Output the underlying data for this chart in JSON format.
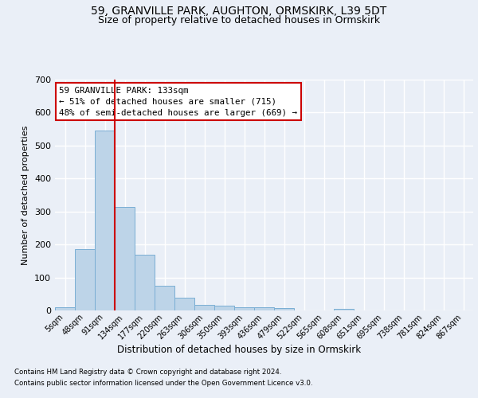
{
  "title1": "59, GRANVILLE PARK, AUGHTON, ORMSKIRK, L39 5DT",
  "title2": "Size of property relative to detached houses in Ormskirk",
  "xlabel": "Distribution of detached houses by size in Ormskirk",
  "ylabel": "Number of detached properties",
  "footer1": "Contains HM Land Registry data © Crown copyright and database right 2024.",
  "footer2": "Contains public sector information licensed under the Open Government Licence v3.0.",
  "bar_labels": [
    "5sqm",
    "48sqm",
    "91sqm",
    "134sqm",
    "177sqm",
    "220sqm",
    "263sqm",
    "306sqm",
    "350sqm",
    "393sqm",
    "436sqm",
    "479sqm",
    "522sqm",
    "565sqm",
    "608sqm",
    "651sqm",
    "695sqm",
    "738sqm",
    "781sqm",
    "824sqm",
    "867sqm"
  ],
  "bar_values": [
    10,
    185,
    545,
    315,
    168,
    76,
    38,
    18,
    15,
    10,
    10,
    8,
    0,
    0,
    6,
    0,
    0,
    0,
    0,
    0,
    0
  ],
  "bar_color": "#bdd4e8",
  "bar_edge_color": "#7aaed4",
  "vline_x": 2.5,
  "vline_color": "#cc0000",
  "annotation_text": "59 GRANVILLE PARK: 133sqm\n← 51% of detached houses are smaller (715)\n48% of semi-detached houses are larger (669) →",
  "annotation_box_color": "#ffffff",
  "annotation_box_edge": "#cc0000",
  "ylim": [
    0,
    700
  ],
  "bg_color": "#eaeff7",
  "grid_color": "#ffffff",
  "title1_fontsize": 10,
  "title2_fontsize": 9
}
